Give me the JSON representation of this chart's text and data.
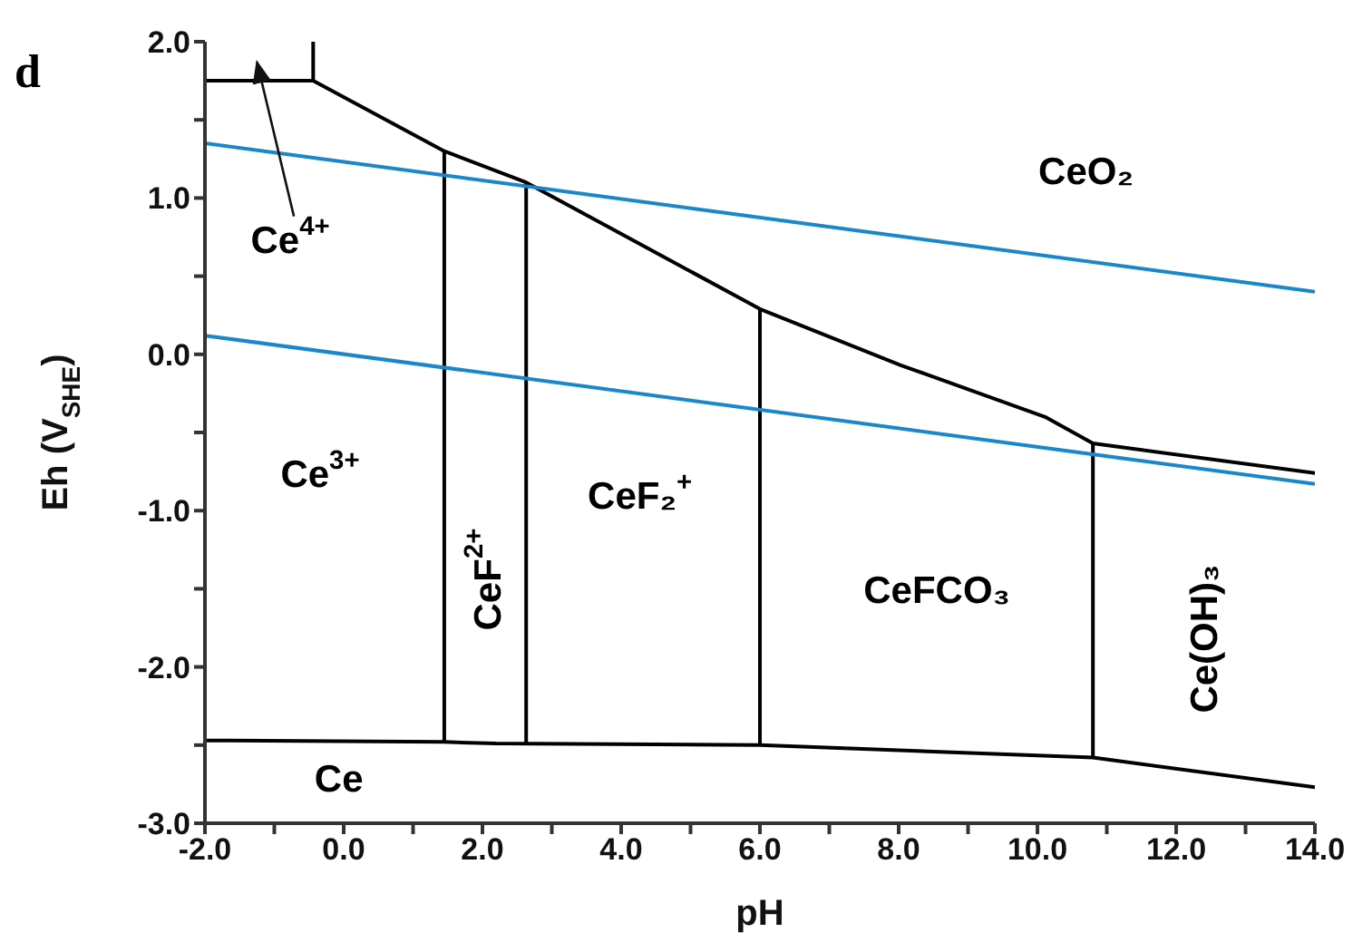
{
  "chart_data": {
    "type": "line",
    "xlabel": "pH",
    "ylabel": "Eh (V$_{SHE}$)",
    "marker": "none",
    "xlim": [
      -2,
      14
    ],
    "ylim": [
      -3,
      2
    ],
    "xticks": [
      {
        "value": -2,
        "label": "-2.0"
      },
      {
        "value": -1,
        "label": null
      },
      {
        "value": 0,
        "label": "0.0"
      },
      {
        "value": 1,
        "label": null
      },
      {
        "value": 2,
        "label": "2.0"
      },
      {
        "value": 3,
        "label": null
      },
      {
        "value": 4,
        "label": "4.0"
      },
      {
        "value": 5,
        "label": null
      },
      {
        "value": 6,
        "label": "6.0"
      },
      {
        "value": 7,
        "label": null
      },
      {
        "value": 8,
        "label": "8.0"
      },
      {
        "value": 9,
        "label": null
      },
      {
        "value": 10,
        "label": "10.0"
      },
      {
        "value": 11,
        "label": null
      },
      {
        "value": 12,
        "label": "12.0"
      },
      {
        "value": 13,
        "label": null
      },
      {
        "value": 14,
        "label": "14.0"
      }
    ],
    "yticks": [
      {
        "value": -3,
        "label": "-3.0"
      },
      {
        "value": -2.5,
        "label": null
      },
      {
        "value": -2,
        "label": "-2.0"
      },
      {
        "value": -1.5,
        "label": null
      },
      {
        "value": -1,
        "label": "-1.0"
      },
      {
        "value": -0.5,
        "label": null
      },
      {
        "value": 0,
        "label": "0.0"
      },
      {
        "value": 0.5,
        "label": null
      },
      {
        "value": 1,
        "label": "1.0"
      },
      {
        "value": 1.5,
        "label": null
      },
      {
        "value": 2,
        "label": "2.0"
      }
    ],
    "series": [
      {
        "color": "#000000",
        "x": [
          -2,
          -0.44,
          -0.44
        ],
        "values": [
          1.75,
          1.75,
          2.0
        ]
      },
      {
        "color": "#000000",
        "x": [
          -0.44,
          1.45,
          2.63,
          6.0,
          8.03,
          10.11,
          10.8,
          14
        ],
        "values": [
          1.75,
          1.3,
          1.1,
          0.29,
          -0.07,
          -0.4,
          -0.57,
          -0.76
        ]
      },
      {
        "color": "#000000",
        "x": [
          -2,
          1.45,
          2.2,
          6.0,
          10.8,
          14
        ],
        "values": [
          -2.47,
          -2.48,
          -2.49,
          -2.5,
          -2.58,
          -2.77
        ]
      },
      {
        "color": "#000000",
        "x": [
          1.45,
          1.45
        ],
        "values": [
          -2.48,
          1.3
        ]
      },
      {
        "color": "#000000",
        "x": [
          2.63,
          2.63
        ],
        "values": [
          -2.49,
          1.1
        ]
      },
      {
        "color": "#000000",
        "x": [
          6.0,
          6.0
        ],
        "values": [
          -2.5,
          0.29
        ]
      },
      {
        "color": "#000000",
        "x": [
          10.8,
          10.8
        ],
        "values": [
          -2.58,
          -0.57
        ]
      },
      {
        "color": "#1a86cc",
        "x": [
          -2,
          14
        ],
        "values": [
          1.35,
          0.4
        ]
      },
      {
        "color": "#1a86cc",
        "x": [
          -2,
          14
        ],
        "values": [
          0.12,
          -0.83
        ]
      }
    ],
    "annotations": [
      "d",
      "Ce$^{4+}$",
      "CeO₂",
      "Ce$^{3+}$",
      "CeF$^{2+}$",
      "CeF₂$^{+}$",
      "CeFCO₃",
      "Ce(OH)₃",
      "Ce"
    ]
  }
}
